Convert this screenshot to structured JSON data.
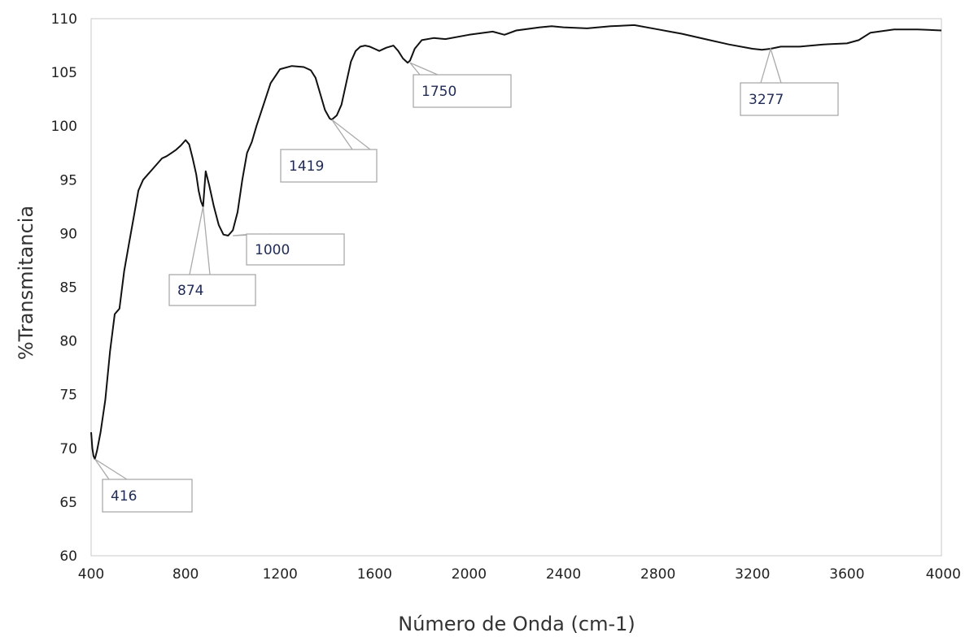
{
  "chart_data": {
    "type": "line",
    "title": "",
    "xlabel": "Número de Onda (cm-1)",
    "ylabel": "%Transmitancia",
    "xlim": [
      400,
      4000
    ],
    "ylim": [
      60,
      110
    ],
    "x_ticks": [
      "400",
      "800",
      "1200",
      "1600",
      "2000",
      "2400",
      "2800",
      "3200",
      "3600",
      "4000"
    ],
    "y_ticks": [
      "60",
      "65",
      "70",
      "75",
      "80",
      "85",
      "90",
      "95",
      "100",
      "105",
      "110"
    ],
    "grid": false,
    "legend": "none",
    "line_color": "#111111",
    "series": [
      {
        "x": [
          400,
          405,
          410,
          416,
          425,
          440,
          460,
          480,
          500,
          520,
          540,
          560,
          580,
          600,
          620,
          640,
          660,
          680,
          700,
          720,
          740,
          760,
          780,
          800,
          815,
          830,
          845,
          855,
          865,
          874,
          885,
          900,
          920,
          940,
          960,
          980,
          1000,
          1020,
          1040,
          1060,
          1080,
          1100,
          1130,
          1160,
          1200,
          1250,
          1300,
          1330,
          1350,
          1370,
          1390,
          1410,
          1419,
          1440,
          1460,
          1480,
          1500,
          1520,
          1540,
          1560,
          1580,
          1600,
          1620,
          1650,
          1680,
          1700,
          1720,
          1740,
          1750,
          1770,
          1800,
          1850,
          1900,
          2000,
          2100,
          2150,
          2200,
          2300,
          2350,
          2400,
          2500,
          2600,
          2700,
          2800,
          2850,
          2900,
          3000,
          3100,
          3200,
          3240,
          3277,
          3320,
          3400,
          3500,
          3600,
          3650,
          3700,
          3800,
          3900,
          4000
        ],
        "y": [
          71.5,
          70.0,
          69.3,
          69.0,
          69.8,
          71.5,
          74.5,
          79.0,
          82.5,
          83.0,
          86.5,
          89.0,
          91.5,
          94.0,
          95.0,
          95.5,
          96.0,
          96.5,
          97.0,
          97.2,
          97.5,
          97.8,
          98.2,
          98.7,
          98.3,
          97.0,
          95.5,
          94.0,
          93.0,
          92.5,
          95.8,
          94.5,
          92.5,
          90.8,
          89.9,
          89.8,
          90.3,
          92.0,
          95.0,
          97.5,
          98.5,
          100.0,
          102.0,
          104.0,
          105.3,
          105.6,
          105.5,
          105.2,
          104.5,
          103.0,
          101.5,
          100.7,
          100.6,
          101.0,
          102.0,
          104.0,
          106.0,
          107.0,
          107.4,
          107.5,
          107.4,
          107.2,
          107.0,
          107.3,
          107.5,
          107.0,
          106.3,
          105.9,
          106.1,
          107.2,
          108.0,
          108.2,
          108.1,
          108.5,
          108.8,
          108.5,
          108.9,
          109.2,
          109.3,
          109.2,
          109.1,
          109.3,
          109.4,
          109.0,
          108.8,
          108.6,
          108.1,
          107.6,
          107.2,
          107.1,
          107.2,
          107.4,
          107.4,
          107.6,
          107.7,
          108.0,
          108.7,
          109.0,
          109.0,
          108.9
        ]
      }
    ],
    "annotations": [
      {
        "label": "416",
        "x": 416,
        "y": 69.0
      },
      {
        "label": "874",
        "x": 874,
        "y": 92.5
      },
      {
        "label": "1000",
        "x": 1000,
        "y": 89.8
      },
      {
        "label": "1419",
        "x": 1419,
        "y": 100.6
      },
      {
        "label": "1750",
        "x": 1750,
        "y": 105.9
      },
      {
        "label": "3277",
        "x": 3277,
        "y": 107.2
      }
    ]
  }
}
